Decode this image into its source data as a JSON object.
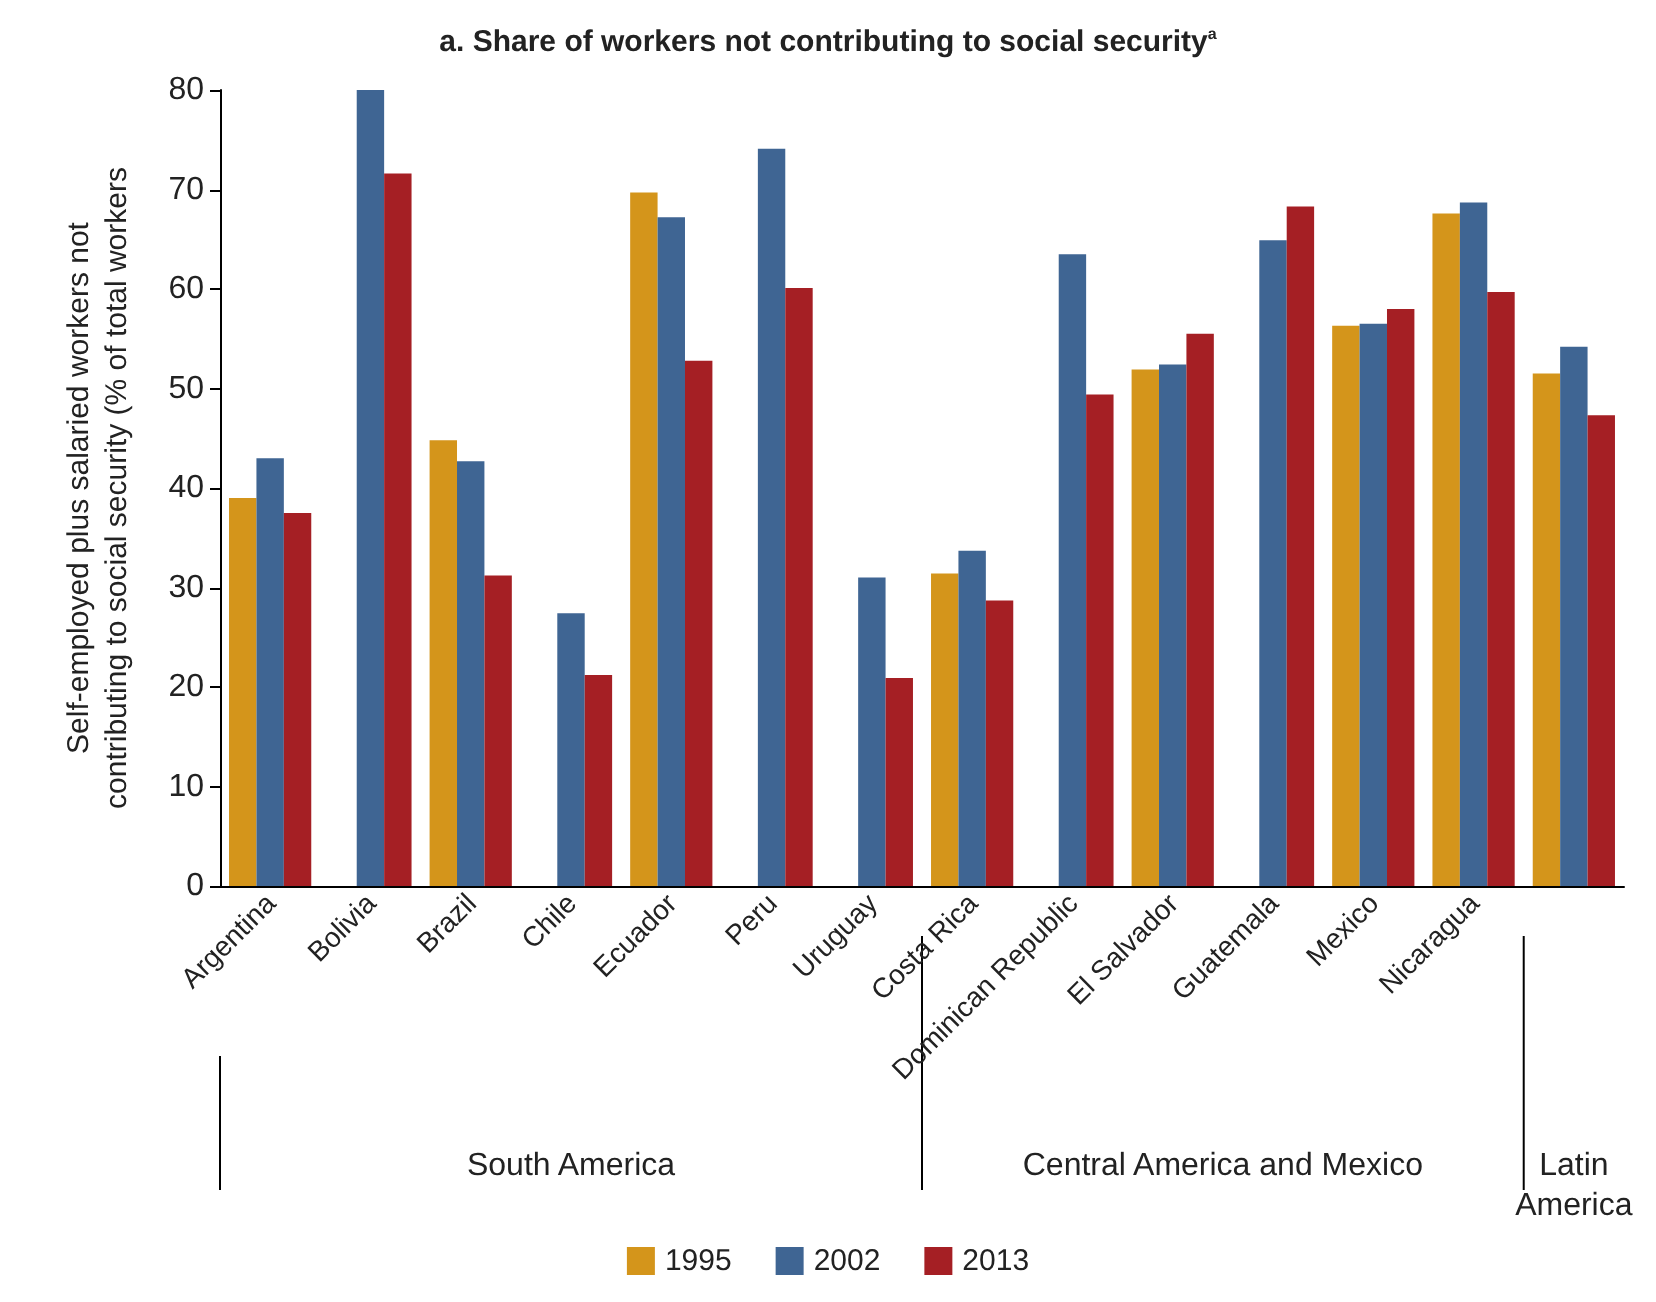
{
  "chart_data": {
    "type": "bar",
    "title": "a. Share of workers not contributing to social security$^{a}$",
    "ylabel": "Self-employed plus salaried workers not\ncontributing to social security (% of total workers",
    "categories": [
      "Argentina",
      "Bolivia",
      "Brazil",
      "Chile",
      "Ecuador",
      "Peru",
      "Uruguay",
      "Costa Rica",
      "Dominican Republic",
      "El Salvador",
      "Guatemala",
      "Mexico",
      "Nicaragua",
      null
    ],
    "series": [
      {
        "name": "1995",
        "color": "#d4951b",
        "values": [
          39,
          null,
          44.8,
          null,
          69.7,
          null,
          null,
          31.4,
          null,
          51.9,
          null,
          56.3,
          67.6,
          51.5
        ]
      },
      {
        "name": "2002",
        "color": "#3f6593",
        "values": [
          43,
          80,
          42.7,
          27.4,
          67.2,
          74.1,
          31,
          33.7,
          63.5,
          52.4,
          64.9,
          56.5,
          68.7,
          54.2
        ]
      },
      {
        "name": "2013",
        "color": "#a51f24",
        "values": [
          37.5,
          71.6,
          31.2,
          21.2,
          52.8,
          60.1,
          20.9,
          28.7,
          49.4,
          55.5,
          68.3,
          58,
          59.7,
          47.3
        ]
      }
    ],
    "ylim": [
      0,
      80
    ],
    "yticks": [
      0,
      10,
      20,
      30,
      40,
      50,
      60,
      70,
      80
    ],
    "grid": false,
    "legend": "bottom",
    "annotations": [
      "South America",
      "Central America and Mexico",
      "Latin\nAmerica"
    ]
  }
}
